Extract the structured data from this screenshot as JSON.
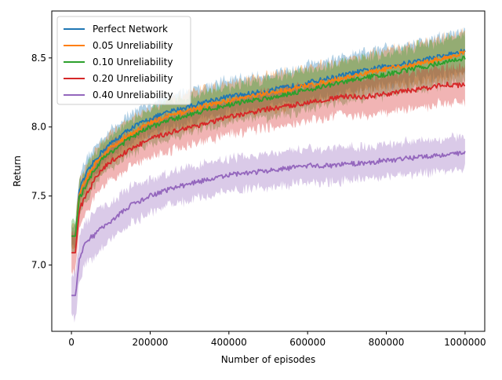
{
  "chart_data": {
    "type": "line",
    "title": "",
    "xlabel": "Number of episodes",
    "ylabel": "Return",
    "xlim": [
      -50000,
      1050000
    ],
    "ylim": [
      6.52,
      8.84
    ],
    "xticks": [
      0,
      200000,
      400000,
      600000,
      800000,
      1000000
    ],
    "xtick_labels": [
      "0",
      "200000",
      "400000",
      "600000",
      "800000",
      "1000000"
    ],
    "yticks": [
      7.0,
      7.5,
      8.0,
      8.5
    ],
    "ytick_labels": [
      "7.0",
      "7.5",
      "8.0",
      "8.5"
    ],
    "grid": false,
    "legend_position": "upper-left",
    "shaded_band": "variability across runs around each mean curve",
    "x": [
      0,
      10000,
      20000,
      40000,
      60000,
      80000,
      100000,
      150000,
      200000,
      250000,
      300000,
      350000,
      400000,
      450000,
      500000,
      550000,
      600000,
      650000,
      700000,
      750000,
      800000,
      850000,
      900000,
      950000,
      1000000
    ],
    "series": [
      {
        "name": "Perfect Network",
        "color": "#1f77b4",
        "values": [
          7.21,
          7.21,
          7.55,
          7.67,
          7.76,
          7.83,
          7.88,
          7.99,
          8.06,
          8.11,
          8.15,
          8.19,
          8.22,
          8.24,
          8.26,
          8.29,
          8.32,
          8.35,
          8.38,
          8.41,
          8.44,
          8.46,
          8.49,
          8.52,
          8.55
        ],
        "band": [
          0.08,
          0.08,
          0.1,
          0.1,
          0.1,
          0.1,
          0.1,
          0.11,
          0.11,
          0.12,
          0.12,
          0.12,
          0.12,
          0.12,
          0.12,
          0.12,
          0.13,
          0.13,
          0.13,
          0.13,
          0.14,
          0.14,
          0.14,
          0.14,
          0.15
        ]
      },
      {
        "name": "0.05 Unreliability",
        "color": "#ff7f0e",
        "values": [
          7.21,
          7.21,
          7.52,
          7.64,
          7.73,
          7.8,
          7.85,
          7.95,
          8.03,
          8.08,
          8.12,
          8.16,
          8.19,
          8.22,
          8.24,
          8.27,
          8.3,
          8.33,
          8.36,
          8.39,
          8.42,
          8.44,
          8.47,
          8.5,
          8.54
        ],
        "band": [
          0.08,
          0.08,
          0.1,
          0.1,
          0.1,
          0.1,
          0.11,
          0.11,
          0.11,
          0.12,
          0.12,
          0.12,
          0.12,
          0.12,
          0.13,
          0.13,
          0.13,
          0.13,
          0.13,
          0.13,
          0.14,
          0.14,
          0.14,
          0.15,
          0.15
        ]
      },
      {
        "name": "0.10 Unreliability",
        "color": "#2ca02c",
        "values": [
          7.21,
          7.21,
          7.48,
          7.6,
          7.7,
          7.77,
          7.82,
          7.92,
          8.0,
          8.05,
          8.09,
          8.13,
          8.16,
          8.19,
          8.21,
          8.24,
          8.27,
          8.3,
          8.33,
          8.36,
          8.38,
          8.41,
          8.44,
          8.47,
          8.5
        ],
        "band": [
          0.12,
          0.12,
          0.12,
          0.12,
          0.12,
          0.12,
          0.12,
          0.12,
          0.13,
          0.13,
          0.13,
          0.13,
          0.13,
          0.13,
          0.14,
          0.14,
          0.14,
          0.14,
          0.14,
          0.15,
          0.15,
          0.15,
          0.16,
          0.16,
          0.17
        ]
      },
      {
        "name": "0.20 Unreliability",
        "color": "#d62728",
        "values": [
          7.09,
          7.09,
          7.4,
          7.52,
          7.62,
          7.7,
          7.75,
          7.84,
          7.91,
          7.96,
          8.0,
          8.03,
          8.07,
          8.1,
          8.13,
          8.15,
          8.18,
          8.2,
          8.22,
          8.22,
          8.24,
          8.26,
          8.28,
          8.31,
          8.3
        ],
        "band": [
          0.13,
          0.13,
          0.13,
          0.13,
          0.13,
          0.13,
          0.13,
          0.13,
          0.13,
          0.13,
          0.13,
          0.13,
          0.13,
          0.13,
          0.13,
          0.13,
          0.13,
          0.13,
          0.13,
          0.13,
          0.13,
          0.13,
          0.13,
          0.13,
          0.13
        ]
      },
      {
        "name": "0.40 Unreliability",
        "color": "#9467bd",
        "values": [
          6.78,
          6.78,
          7.05,
          7.18,
          7.22,
          7.28,
          7.32,
          7.43,
          7.5,
          7.55,
          7.59,
          7.62,
          7.65,
          7.67,
          7.68,
          7.7,
          7.72,
          7.72,
          7.73,
          7.74,
          7.76,
          7.77,
          7.79,
          7.8,
          7.81
        ],
        "band": [
          0.16,
          0.16,
          0.16,
          0.15,
          0.15,
          0.14,
          0.14,
          0.13,
          0.12,
          0.12,
          0.12,
          0.12,
          0.12,
          0.12,
          0.12,
          0.12,
          0.12,
          0.12,
          0.12,
          0.12,
          0.12,
          0.12,
          0.12,
          0.12,
          0.12
        ]
      }
    ]
  }
}
